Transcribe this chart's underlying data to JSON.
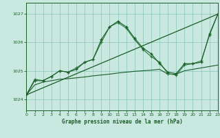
{
  "title": "Graphe pression niveau de la mer (hPa)",
  "bg_color": "#c8e8e0",
  "plot_bg_color": "#c8e8e0",
  "grid_color": "#88c4b8",
  "line_color_dark": "#1a5c28",
  "line_color_mid": "#2a7a38",
  "xlim": [
    0,
    23
  ],
  "ylim": [
    1023.6,
    1027.4
  ],
  "yticks": [
    1024,
    1025,
    1026,
    1027
  ],
  "xticks": [
    0,
    1,
    2,
    3,
    4,
    5,
    6,
    7,
    8,
    9,
    10,
    11,
    12,
    13,
    14,
    15,
    16,
    17,
    18,
    19,
    20,
    21,
    22,
    23
  ],
  "series_main_x": [
    0,
    1,
    2,
    3,
    4,
    5,
    6,
    7,
    8,
    9,
    10,
    11,
    12,
    13,
    14,
    15,
    16,
    17,
    18,
    19,
    20,
    21,
    22,
    23
  ],
  "series_main_y": [
    1024.15,
    1024.65,
    1024.65,
    1024.8,
    1025.0,
    1024.95,
    1025.05,
    1025.3,
    1025.4,
    1026.1,
    1026.55,
    1026.75,
    1026.55,
    1026.15,
    1025.8,
    1025.6,
    1025.25,
    1024.95,
    1024.9,
    1025.25,
    1025.25,
    1025.3,
    1026.3,
    1027.0
  ],
  "series_second_x": [
    0,
    1,
    2,
    3,
    4,
    5,
    6,
    7,
    8,
    9,
    10,
    11,
    12,
    13,
    14,
    15,
    16,
    17,
    18,
    19,
    20,
    21,
    22,
    23
  ],
  "series_second_y": [
    1024.15,
    1024.7,
    1024.65,
    1024.8,
    1025.0,
    1024.95,
    1025.1,
    1025.3,
    1025.4,
    1026.0,
    1026.55,
    1026.7,
    1026.5,
    1026.1,
    1025.75,
    1025.5,
    1025.3,
    1024.9,
    1024.85,
    1025.2,
    1025.25,
    1025.35,
    1026.25,
    1027.0
  ],
  "series_trend_x": [
    0,
    23
  ],
  "series_trend_y": [
    1024.15,
    1027.0
  ],
  "series_smooth_x": [
    0,
    1,
    2,
    3,
    4,
    5,
    6,
    7,
    8,
    9,
    10,
    11,
    12,
    13,
    14,
    15,
    16,
    17,
    18,
    19,
    20,
    21,
    22,
    23
  ],
  "series_smooth_y": [
    1024.15,
    1024.5,
    1024.6,
    1024.65,
    1024.7,
    1024.72,
    1024.75,
    1024.78,
    1024.82,
    1024.85,
    1024.88,
    1024.92,
    1024.95,
    1024.98,
    1025.0,
    1025.02,
    1025.05,
    1024.88,
    1024.88,
    1025.0,
    1025.05,
    1025.1,
    1025.15,
    1025.2
  ]
}
